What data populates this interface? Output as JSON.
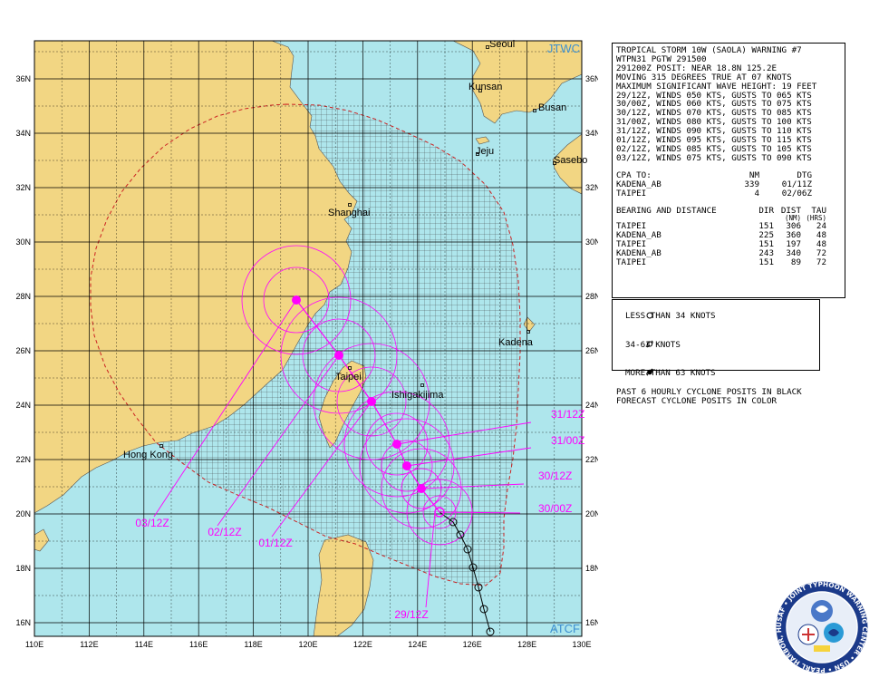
{
  "map": {
    "agency_top": "JTWC",
    "agency_bottom": "ATCF",
    "lat_labels": [
      "36N",
      "34N",
      "32N",
      "30N",
      "28N",
      "26N",
      "24N",
      "22N",
      "20N",
      "18N",
      "16N"
    ],
    "lon_labels": [
      "110E",
      "112E",
      "114E",
      "116E",
      "118E",
      "120E",
      "122E",
      "124E",
      "126E",
      "128E",
      "130E"
    ],
    "places": [
      "Seoul",
      "Kunsan",
      "Busan",
      "Jeju",
      "Sasebo",
      "Shanghai",
      "Kadena",
      "Taipei",
      "Ishigakijima",
      "Hong Kong"
    ],
    "forecast_labels": [
      "31/12Z",
      "31/00Z",
      "30/12Z",
      "30/00Z",
      "29/12Z",
      "01/12Z",
      "02/12Z",
      "03/12Z"
    ],
    "colors": {
      "ocean": "#aee6ec",
      "land": "#f2d683",
      "grid": "#000000",
      "forecast": "#ff00ff",
      "danger_area": "#cc2222"
    }
  },
  "warning": {
    "line1": "TROPICAL STORM 10W (SAOLA) WARNING #7",
    "line2": "WTPN31 PGTW 291500",
    "line3": "291200Z POSIT: NEAR 18.8N 125.2E",
    "line4": "MOVING 315 DEGREES TRUE AT 07 KNOTS",
    "line5": "MAXIMUM SIGNIFICANT WAVE HEIGHT: 19 FEET",
    "forecasts": [
      "29/12Z, WINDS 050 KTS, GUSTS TO 065 KTS",
      "30/00Z, WINDS 060 KTS, GUSTS TO 075 KTS",
      "30/12Z, WINDS 070 KTS, GUSTS TO 085 KTS",
      "31/00Z, WINDS 080 KTS, GUSTS TO 100 KTS",
      "31/12Z, WINDS 090 KTS, GUSTS TO 110 KTS",
      "01/12Z, WINDS 095 KTS, GUSTS TO 115 KTS",
      "02/12Z, WINDS 085 KTS, GUSTS TO 105 KTS",
      "03/12Z, WINDS 075 KTS, GUSTS TO 090 KTS"
    ],
    "cpa": {
      "title": "CPA TO:",
      "col_nm": "NM",
      "col_dtg": "DTG",
      "rows": [
        {
          "name": "KADENA_AB",
          "nm": "339",
          "dtg": "01/11Z"
        },
        {
          "name": "TAIPEI",
          "nm": "4",
          "dtg": "02/06Z"
        }
      ]
    },
    "bearing": {
      "title": "BEARING AND DISTANCE",
      "col_dir": "DIR",
      "col_dist": "DIST",
      "col_tau": "TAU",
      "col_dist_unit": "(NM)",
      "col_tau_unit": "(HRS)",
      "rows": [
        {
          "name": "TAIPEI",
          "dir": "151",
          "dist": "306",
          "tau": "24"
        },
        {
          "name": "KADENA_AB",
          "dir": "225",
          "dist": "360",
          "tau": "48"
        },
        {
          "name": "TAIPEI",
          "dir": "151",
          "dist": "197",
          "tau": "48"
        },
        {
          "name": "KADENA_AB",
          "dir": "243",
          "dist": "340",
          "tau": "72"
        },
        {
          "name": "TAIPEI",
          "dir": "151",
          "dist": "89",
          "tau": "72"
        }
      ]
    }
  },
  "legend": {
    "items": [
      {
        "symbol": "circle-open-icon",
        "label": "LESS THAN 34 KNOTS"
      },
      {
        "symbol": "storm-open-icon",
        "label": "34-63 KNOTS"
      },
      {
        "symbol": "storm-filled-icon",
        "label": "MORE THAN 63 KNOTS"
      }
    ],
    "note1": "PAST 6 HOURLY CYCLONE POSITS IN BLACK",
    "note2": "FORECAST CYCLONE POSITS IN COLOR"
  },
  "seal": {
    "text": "USAF • JOINT TYPHOON WARNING CENTER • USN • PEARL HARBOR, HAWAII"
  }
}
